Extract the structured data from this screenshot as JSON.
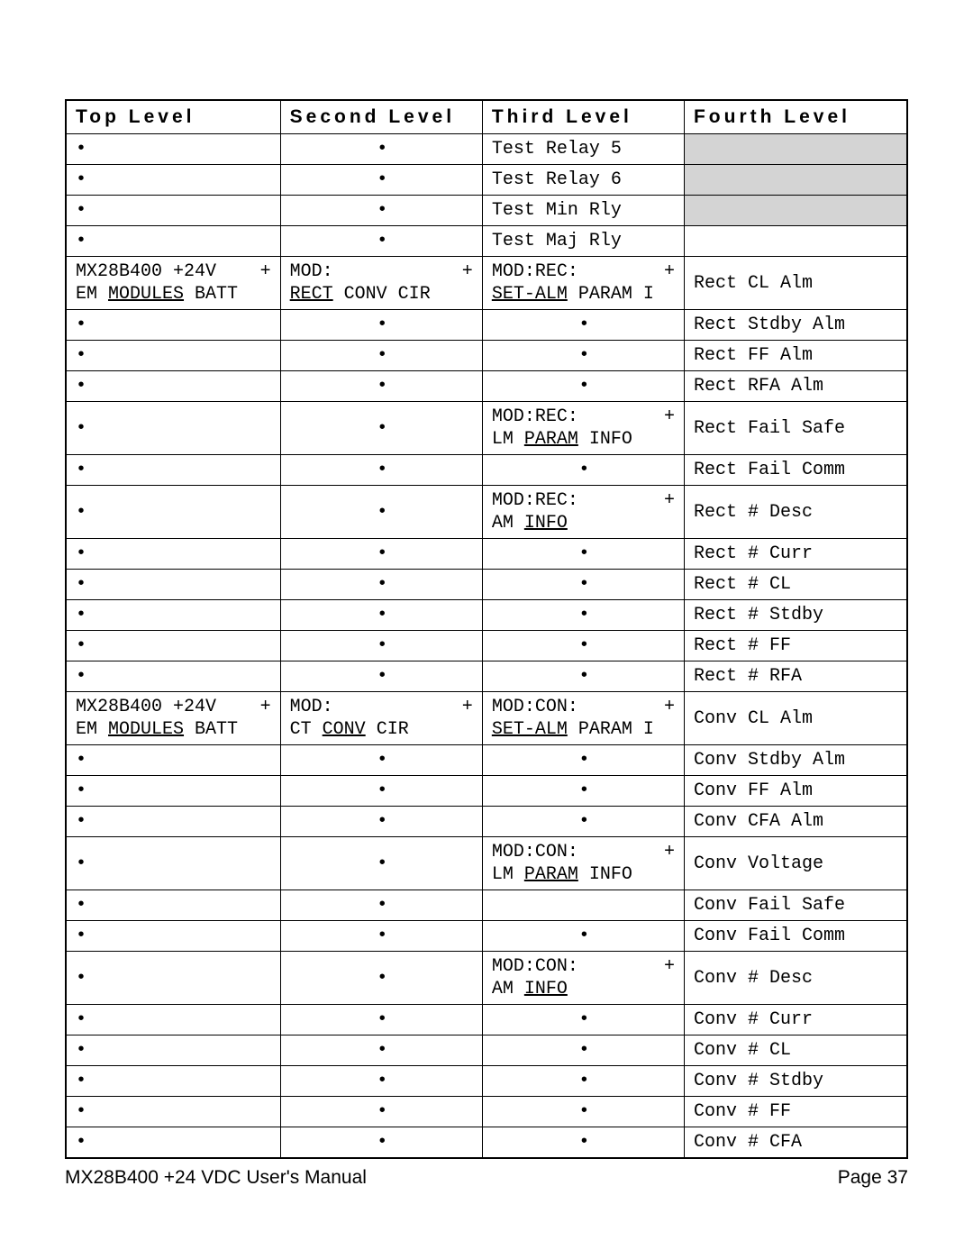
{
  "headers": {
    "c1": "Top Level",
    "c2": "Second Level",
    "c3": "Third Level",
    "c4": "Fourth Level"
  },
  "footer": {
    "left": "MX28B400 +24 VDC User's Manual",
    "right": "Page 37"
  },
  "colors": {
    "shaded_bg": "#d4d4d4",
    "border": "#000000",
    "page_bg": "#ffffff"
  },
  "rows": [
    {
      "c1": {
        "t": "bullet"
      },
      "c2": {
        "t": "bullet-c"
      },
      "c3": {
        "t": "text",
        "v": "Test Relay 5"
      },
      "c4": {
        "t": "shaded"
      }
    },
    {
      "c1": {
        "t": "bullet"
      },
      "c2": {
        "t": "bullet-c"
      },
      "c3": {
        "t": "text",
        "v": "Test Relay 6"
      },
      "c4": {
        "t": "shaded"
      }
    },
    {
      "c1": {
        "t": "bullet"
      },
      "c2": {
        "t": "bullet-c"
      },
      "c3": {
        "t": "text",
        "v": "Test Min Rly"
      },
      "c4": {
        "t": "shaded"
      }
    },
    {
      "c1": {
        "t": "bullet"
      },
      "c2": {
        "t": "bullet-c"
      },
      "c3": {
        "t": "text",
        "v": "Test Maj Rly"
      },
      "c4": {
        "t": "empty"
      }
    },
    {
      "c1": {
        "t": "multi",
        "line1_a": "MX28B400 +24V",
        "plus": "+",
        "line2_a": "EM ",
        "line2_u": "MODULES",
        "line2_b": " BATT"
      },
      "c2": {
        "t": "multi",
        "line1_a": "MOD:",
        "plus": "+",
        "line2_a": "",
        "line2_u": "RECT",
        "line2_b": " CONV CIR"
      },
      "c3": {
        "t": "multi",
        "line1_a": "MOD:REC:",
        "plus": "+",
        "line2_a": "",
        "line2_u": "SET-ALM",
        "line2_b": " PARAM I"
      },
      "c4": {
        "t": "text",
        "v": "Rect CL Alm"
      }
    },
    {
      "c1": {
        "t": "bullet"
      },
      "c2": {
        "t": "bullet-c"
      },
      "c3": {
        "t": "bullet-c"
      },
      "c4": {
        "t": "text",
        "v": "Rect Stdby Alm"
      }
    },
    {
      "c1": {
        "t": "bullet"
      },
      "c2": {
        "t": "bullet-c"
      },
      "c3": {
        "t": "bullet-c"
      },
      "c4": {
        "t": "text",
        "v": "Rect FF Alm"
      }
    },
    {
      "c1": {
        "t": "bullet"
      },
      "c2": {
        "t": "bullet-c"
      },
      "c3": {
        "t": "bullet-c"
      },
      "c4": {
        "t": "text",
        "v": "Rect RFA Alm"
      }
    },
    {
      "c1": {
        "t": "bullet"
      },
      "c2": {
        "t": "bullet-c"
      },
      "c3": {
        "t": "multi",
        "line1_a": "MOD:REC:",
        "plus": "+",
        "line2_a": "LM ",
        "line2_u": "PARAM",
        "line2_b": " INFO"
      },
      "c4": {
        "t": "text",
        "v": "Rect Fail Safe"
      }
    },
    {
      "c1": {
        "t": "bullet"
      },
      "c2": {
        "t": "bullet-c"
      },
      "c3": {
        "t": "bullet-c"
      },
      "c4": {
        "t": "text",
        "v": "Rect Fail Comm"
      }
    },
    {
      "c1": {
        "t": "bullet"
      },
      "c2": {
        "t": "bullet-c"
      },
      "c3": {
        "t": "multi",
        "line1_a": "MOD:REC:",
        "plus": "+",
        "line2_a": "AM ",
        "line2_u": "INFO",
        "line2_b": ""
      },
      "c4": {
        "t": "text",
        "v": "Rect # Desc"
      }
    },
    {
      "c1": {
        "t": "bullet"
      },
      "c2": {
        "t": "bullet-c"
      },
      "c3": {
        "t": "bullet-c"
      },
      "c4": {
        "t": "text",
        "v": "Rect # Curr"
      }
    },
    {
      "c1": {
        "t": "bullet"
      },
      "c2": {
        "t": "bullet-c"
      },
      "c3": {
        "t": "bullet-c"
      },
      "c4": {
        "t": "text",
        "v": "Rect # CL"
      }
    },
    {
      "c1": {
        "t": "bullet"
      },
      "c2": {
        "t": "bullet-c"
      },
      "c3": {
        "t": "bullet-c"
      },
      "c4": {
        "t": "text",
        "v": "Rect # Stdby"
      }
    },
    {
      "c1": {
        "t": "bullet"
      },
      "c2": {
        "t": "bullet-c"
      },
      "c3": {
        "t": "bullet-c"
      },
      "c4": {
        "t": "text",
        "v": "Rect # FF"
      }
    },
    {
      "c1": {
        "t": "bullet"
      },
      "c2": {
        "t": "bullet-c"
      },
      "c3": {
        "t": "bullet-c"
      },
      "c4": {
        "t": "text",
        "v": "Rect # RFA"
      }
    },
    {
      "c1": {
        "t": "multi",
        "line1_a": "MX28B400 +24V",
        "plus": "+",
        "line2_a": "EM ",
        "line2_u": "MODULES",
        "line2_b": " BATT"
      },
      "c2": {
        "t": "multi",
        "line1_a": "MOD:",
        "plus": "+",
        "line2_a": "CT ",
        "line2_u": "CONV",
        "line2_b": " CIR"
      },
      "c3": {
        "t": "multi",
        "line1_a": "MOD:CON:",
        "plus": "+",
        "line2_a": "",
        "line2_u": "SET-ALM",
        "line2_b": " PARAM I"
      },
      "c4": {
        "t": "text",
        "v": "Conv CL Alm"
      }
    },
    {
      "c1": {
        "t": "bullet"
      },
      "c2": {
        "t": "bullet-c"
      },
      "c3": {
        "t": "bullet-c"
      },
      "c4": {
        "t": "text",
        "v": "Conv Stdby Alm"
      }
    },
    {
      "c1": {
        "t": "bullet"
      },
      "c2": {
        "t": "bullet-c"
      },
      "c3": {
        "t": "bullet-c"
      },
      "c4": {
        "t": "text",
        "v": "Conv FF Alm"
      }
    },
    {
      "c1": {
        "t": "bullet"
      },
      "c2": {
        "t": "bullet-c"
      },
      "c3": {
        "t": "bullet-c"
      },
      "c4": {
        "t": "text",
        "v": "Conv CFA Alm"
      }
    },
    {
      "c1": {
        "t": "bullet"
      },
      "c2": {
        "t": "bullet-c"
      },
      "c3": {
        "t": "multi",
        "line1_a": "MOD:CON:",
        "plus": "+",
        "line2_a": "LM ",
        "line2_u": "PARAM",
        "line2_b": " INFO"
      },
      "c4": {
        "t": "text",
        "v": "Conv Voltage"
      }
    },
    {
      "c1": {
        "t": "bullet"
      },
      "c2": {
        "t": "bullet-c"
      },
      "c3": {
        "t": "empty"
      },
      "c4": {
        "t": "text",
        "v": "Conv Fail Safe"
      }
    },
    {
      "c1": {
        "t": "bullet"
      },
      "c2": {
        "t": "bullet-c"
      },
      "c3": {
        "t": "bullet-c"
      },
      "c4": {
        "t": "text",
        "v": "Conv Fail Comm"
      }
    },
    {
      "c1": {
        "t": "bullet"
      },
      "c2": {
        "t": "bullet-c"
      },
      "c3": {
        "t": "multi",
        "line1_a": "MOD:CON:",
        "plus": "+",
        "line2_a": "AM ",
        "line2_u": "INFO",
        "line2_b": ""
      },
      "c4": {
        "t": "text",
        "v": "Conv # Desc"
      }
    },
    {
      "c1": {
        "t": "bullet"
      },
      "c2": {
        "t": "bullet-c"
      },
      "c3": {
        "t": "bullet-c"
      },
      "c4": {
        "t": "text",
        "v": "Conv # Curr"
      }
    },
    {
      "c1": {
        "t": "bullet"
      },
      "c2": {
        "t": "bullet-c"
      },
      "c3": {
        "t": "bullet-c"
      },
      "c4": {
        "t": "text",
        "v": "Conv # CL"
      }
    },
    {
      "c1": {
        "t": "bullet"
      },
      "c2": {
        "t": "bullet-c"
      },
      "c3": {
        "t": "bullet-c"
      },
      "c4": {
        "t": "text",
        "v": "Conv # Stdby"
      }
    },
    {
      "c1": {
        "t": "bullet"
      },
      "c2": {
        "t": "bullet-c"
      },
      "c3": {
        "t": "bullet-c"
      },
      "c4": {
        "t": "text",
        "v": "Conv # FF"
      }
    },
    {
      "c1": {
        "t": "bullet"
      },
      "c2": {
        "t": "bullet-c"
      },
      "c3": {
        "t": "bullet-c"
      },
      "c4": {
        "t": "text",
        "v": "Conv # CFA"
      }
    }
  ]
}
